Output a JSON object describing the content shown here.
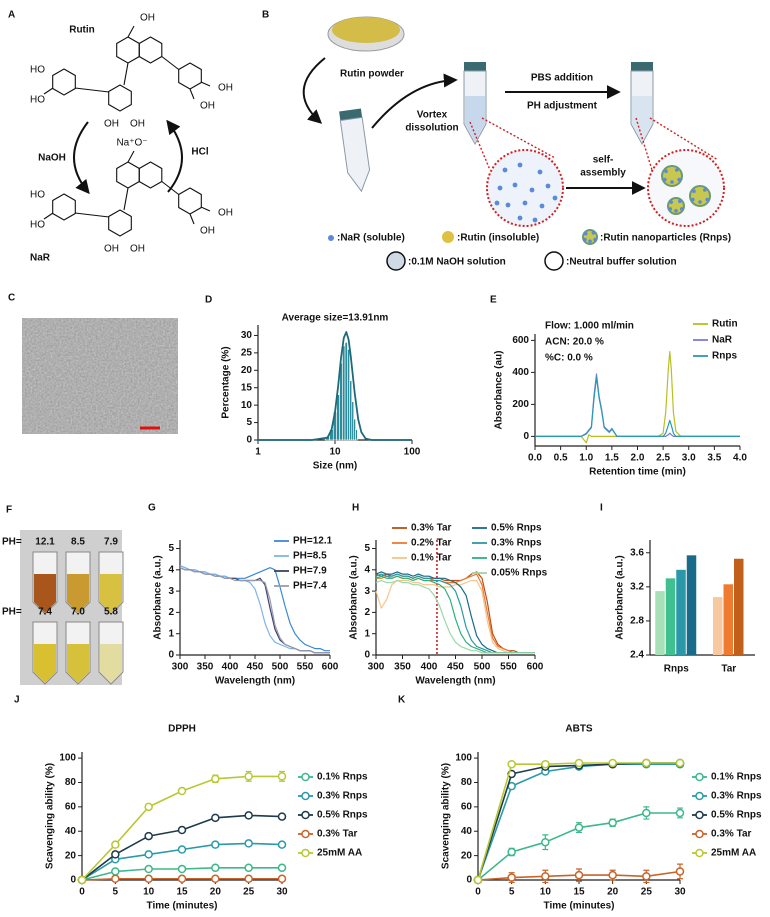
{
  "panel_letters": [
    "A",
    "B",
    "C",
    "D",
    "E",
    "F",
    "G",
    "H",
    "I",
    "J",
    "K"
  ],
  "scheme_a": {
    "rutin": "Rutin",
    "nar": "NaR",
    "forward": "NaOH",
    "reverse": "HCl",
    "ion": "Na⁺O⁻",
    "rutin_groups": [
      "OH",
      "OH",
      "OH",
      "OH",
      "OH",
      "HO",
      "HO"
    ],
    "nar_groups": [
      "OH",
      "OH",
      "OH",
      "OH",
      "HO",
      "HO"
    ]
  },
  "scheme_b": {
    "powder": "Rutin powder",
    "vortex": [
      "Vortex",
      "dissolution"
    ],
    "step1": "PBS addition",
    "step2": "PH adjustment",
    "assembly": [
      "self-",
      "assembly"
    ],
    "legend": [
      ":NaR (soluble)",
      ":Rutin (insoluble)",
      ":Rutin nanoparticles (Rnps)",
      ":0.1M NaOH solution",
      ":Neutral buffer solution"
    ]
  },
  "vials": {
    "rows": [
      {
        "label": "PH=",
        "values": [
          "12.1",
          "8.5",
          "7.9"
        ]
      },
      {
        "label": "PH=",
        "values": [
          "7.4",
          "7.0",
          "5.8"
        ]
      }
    ]
  },
  "chart_data": [
    {
      "type": "histogram",
      "title": "Average size=13.91nm",
      "xlabel": "Size (nm)",
      "ylabel": "Percentage (%)",
      "xlog": true,
      "xlim": [
        1,
        100
      ],
      "xticks": [
        1,
        10,
        100
      ],
      "ylim": [
        0,
        33
      ],
      "yticks": [
        0,
        5,
        10,
        15,
        20,
        25,
        30
      ],
      "color": "#2c8c9c",
      "bins": [
        7.5,
        8.5,
        9.5,
        10.5,
        11.5,
        12.5,
        13.5,
        14.5,
        15.5,
        16.5,
        17.5,
        18.5,
        19.5
      ],
      "values": [
        1,
        3,
        8,
        13,
        22,
        27,
        28,
        26,
        17,
        11,
        6,
        3
      ],
      "fit": {
        "color": "#1e6a78",
        "x": [
          1,
          5,
          8,
          9,
          10,
          11,
          12,
          13,
          14,
          15,
          16,
          18,
          20,
          22,
          25,
          30,
          100
        ],
        "values": [
          0,
          0,
          0.7,
          2.9,
          8,
          15.6,
          23.7,
          29.3,
          31,
          28.8,
          24.2,
          13.5,
          5.9,
          2.2,
          0.4,
          0,
          0
        ]
      }
    },
    {
      "type": "line",
      "xlabel": "Retention time (min)",
      "ylabel": "Absorbance (au)",
      "annotations": [
        "Flow: 1.000 ml/min",
        "ACN: 20.0 %",
        "%C: 0.0 %"
      ],
      "xlim": [
        0,
        4
      ],
      "xticks": [
        {
          "value": 0,
          "label": "0.0"
        },
        0.5,
        {
          "value": 1,
          "label": "1.0"
        },
        1.5,
        {
          "value": 2,
          "label": "2.0"
        },
        2.5,
        {
          "value": 3,
          "label": "3.0"
        },
        3.5,
        {
          "value": 4,
          "label": "4.0"
        }
      ],
      "ylim": [
        -60,
        640
      ],
      "yticks": [
        0,
        200,
        400,
        600
      ],
      "x": [
        0,
        0.9,
        1,
        1.05,
        1.1,
        1.15,
        1.2,
        1.25,
        1.3,
        1.35,
        1.45,
        1.5,
        1.6,
        2.4,
        2.5,
        2.55,
        2.6,
        2.63,
        2.66,
        2.7,
        2.75,
        2.85,
        4
      ],
      "series": [
        {
          "name": "Rutin",
          "color": "#b8c020",
          "values": [
            0,
            0,
            -40,
            10,
            0,
            0,
            0,
            0,
            0,
            0,
            0,
            0,
            0,
            0,
            20,
            150,
            420,
            530,
            420,
            150,
            30,
            0,
            0
          ]
        },
        {
          "name": "NaR",
          "color": "#7a7ae0",
          "values": [
            0,
            0,
            20,
            40,
            60,
            250,
            390,
            250,
            170,
            60,
            30,
            50,
            0,
            0,
            0,
            0,
            10,
            20,
            10,
            0,
            0,
            0,
            0
          ]
        },
        {
          "name": "Rnps",
          "color": "#2a9ab0",
          "values": [
            0,
            0,
            15,
            35,
            55,
            230,
            370,
            240,
            160,
            55,
            25,
            45,
            0,
            0,
            0,
            20,
            70,
            100,
            70,
            20,
            0,
            0,
            0
          ]
        }
      ]
    },
    {
      "type": "line",
      "xlabel": "Wavelength (nm)",
      "ylabel": "Absorbance (a.u.)",
      "xlim": [
        300,
        600
      ],
      "xticks": [
        300,
        350,
        400,
        450,
        500,
        550,
        600
      ],
      "ylim": [
        0,
        5.4
      ],
      "yticks": [
        0,
        1,
        2,
        3,
        4,
        5
      ],
      "x": [
        300,
        310,
        320,
        330,
        340,
        350,
        360,
        370,
        380,
        390,
        400,
        410,
        420,
        430,
        440,
        450,
        460,
        470,
        480,
        490,
        500,
        510,
        520,
        530,
        540,
        550,
        560,
        570,
        580,
        590,
        600
      ],
      "series": [
        {
          "name": "PH=12.1",
          "color": "#3a88d8",
          "values": [
            4.2,
            4.1,
            4.0,
            4.0,
            3.9,
            3.9,
            3.8,
            3.8,
            3.7,
            3.7,
            3.6,
            3.6,
            3.6,
            3.6,
            3.7,
            3.8,
            3.9,
            4.0,
            4.1,
            4.0,
            3.2,
            2.3,
            1.5,
            1.0,
            0.7,
            0.5,
            0.4,
            0.3,
            0.3,
            0.2,
            0.2
          ]
        },
        {
          "name": "PH=8.5",
          "color": "#80b4ea",
          "values": [
            4.2,
            4.1,
            4.0,
            4.0,
            3.9,
            3.9,
            3.8,
            3.8,
            3.7,
            3.7,
            3.6,
            3.6,
            3.5,
            3.5,
            3.4,
            3.1,
            2.4,
            1.5,
            0.9,
            0.6,
            0.5,
            0.4,
            0.3,
            0.3,
            0.2,
            0.2,
            0.2,
            0.1,
            0.1,
            0.1,
            0.1
          ]
        },
        {
          "name": "PH=7.9",
          "color": "#3a4466",
          "values": [
            4.1,
            4.0,
            4.0,
            3.9,
            3.9,
            3.8,
            3.8,
            3.7,
            3.7,
            3.6,
            3.6,
            3.6,
            3.5,
            3.5,
            3.5,
            3.5,
            3.6,
            3.3,
            2.2,
            1.2,
            0.7,
            0.5,
            0.4,
            0.3,
            0.2,
            0.2,
            0.2,
            0.1,
            0.1,
            0.1,
            0.1
          ]
        },
        {
          "name": "PH=7.4",
          "color": "#9a9aae",
          "values": [
            4.1,
            4.0,
            4.0,
            3.9,
            3.9,
            3.8,
            3.8,
            3.7,
            3.7,
            3.6,
            3.6,
            3.5,
            3.5,
            3.5,
            3.5,
            3.5,
            3.5,
            3.4,
            2.6,
            1.4,
            0.8,
            0.5,
            0.4,
            0.3,
            0.2,
            0.2,
            0.2,
            0.1,
            0.1,
            0.1,
            0.1
          ]
        }
      ]
    },
    {
      "type": "line",
      "xlabel": "Wavelength (nm)",
      "ylabel": "Absorbance (a.u.)",
      "xlim": [
        300,
        600
      ],
      "xticks": [
        300,
        350,
        400,
        450,
        500,
        550,
        600
      ],
      "ylim": [
        0,
        5.4
      ],
      "yticks": [
        0,
        1,
        2,
        3,
        4,
        5
      ],
      "vline": 415,
      "vline_color": "#d02020",
      "x": [
        300,
        310,
        320,
        330,
        340,
        350,
        360,
        370,
        380,
        390,
        400,
        410,
        420,
        430,
        440,
        450,
        460,
        470,
        480,
        490,
        500,
        510,
        520,
        530,
        540,
        550,
        560,
        570,
        580,
        590,
        600
      ],
      "series": [
        {
          "name": "0.3% Tar",
          "color": "#b8501a",
          "values": [
            3.8,
            3.7,
            3.8,
            3.7,
            3.8,
            3.7,
            3.7,
            3.6,
            3.7,
            3.6,
            3.6,
            3.6,
            3.6,
            3.5,
            3.5,
            3.5,
            3.5,
            3.6,
            3.8,
            3.9,
            3.6,
            2.5,
            1.0,
            0.5,
            0.3,
            0.2,
            0.2,
            0.1,
            0.1,
            0.1,
            0.1
          ]
        },
        {
          "name": "0.2% Tar",
          "color": "#f07830",
          "values": [
            3.6,
            3.6,
            3.7,
            3.6,
            3.7,
            3.6,
            3.6,
            3.5,
            3.6,
            3.5,
            3.5,
            3.5,
            3.5,
            3.4,
            3.4,
            3.4,
            3.5,
            3.6,
            3.7,
            3.8,
            3.3,
            2.0,
            0.8,
            0.4,
            0.3,
            0.2,
            0.1,
            0.1,
            0.1,
            0.1,
            0.1
          ]
        },
        {
          "name": "0.1% Tar",
          "color": "#f5c48a",
          "values": [
            3.0,
            2.2,
            2.6,
            3.3,
            3.5,
            3.5,
            3.5,
            3.4,
            3.4,
            3.3,
            3.3,
            3.3,
            3.2,
            3.2,
            3.2,
            3.3,
            3.3,
            3.4,
            3.5,
            3.5,
            3.0,
            1.6,
            0.6,
            0.3,
            0.2,
            0.1,
            0.1,
            0.1,
            0.1,
            0.1,
            0.1
          ]
        },
        {
          "name": "0.5% Rnps",
          "color": "#1a6a8a",
          "values": [
            3.8,
            3.9,
            3.8,
            3.8,
            3.9,
            3.8,
            3.8,
            3.7,
            3.8,
            3.7,
            3.7,
            3.6,
            3.6,
            3.6,
            3.5,
            3.4,
            3.2,
            2.8,
            1.8,
            0.9,
            0.5,
            0.3,
            0.2,
            0.1,
            0.1,
            0.1,
            0.1,
            0.1,
            0.1,
            0.1,
            0.1
          ]
        },
        {
          "name": "0.3% Rnps",
          "color": "#2b9aa0",
          "values": [
            3.7,
            3.8,
            3.7,
            3.7,
            3.8,
            3.7,
            3.7,
            3.6,
            3.7,
            3.6,
            3.6,
            3.5,
            3.5,
            3.4,
            3.3,
            3.0,
            2.3,
            1.3,
            0.7,
            0.4,
            0.3,
            0.2,
            0.1,
            0.1,
            0.1,
            0.1,
            0.1,
            0.1,
            0.1,
            0.1,
            0.1
          ]
        },
        {
          "name": "0.1% Rnps",
          "color": "#2fb07a",
          "values": [
            3.6,
            3.7,
            3.6,
            3.6,
            3.7,
            3.6,
            3.6,
            3.5,
            3.6,
            3.5,
            3.5,
            3.4,
            3.3,
            3.1,
            2.6,
            1.7,
            1.0,
            0.6,
            0.4,
            0.3,
            0.2,
            0.1,
            0.1,
            0.1,
            0.1,
            0.1,
            0.1,
            0.1,
            0.1,
            0.1,
            0.1
          ]
        },
        {
          "name": "0.05% Rnps",
          "color": "#9ad8a8",
          "values": [
            3.4,
            3.5,
            3.4,
            3.4,
            3.5,
            3.4,
            3.4,
            3.3,
            3.3,
            3.2,
            3.1,
            2.8,
            2.3,
            1.6,
            1.0,
            0.6,
            0.4,
            0.3,
            0.2,
            0.2,
            0.1,
            0.1,
            0.1,
            0.1,
            0.1,
            0.1,
            0.1,
            0.1,
            0.1,
            0.1,
            0.1
          ]
        }
      ]
    },
    {
      "type": "bar",
      "ylabel": "Absorbance (a.u.)",
      "ylim": [
        2.4,
        3.75
      ],
      "yticks": [
        2.4,
        2.8,
        3.2,
        3.6
      ],
      "groups": [
        {
          "name": "Rnps",
          "values": [
            3.15,
            3.3,
            3.4,
            3.57
          ],
          "colors": [
            "#a8e0b8",
            "#40c090",
            "#2a98a8",
            "#1a6a8a"
          ]
        },
        {
          "name": "Tar",
          "values": [
            3.08,
            3.23,
            3.53
          ],
          "colors": [
            "#f8c8a0",
            "#f07a30",
            "#c0601a"
          ]
        }
      ]
    },
    {
      "type": "line",
      "markers": true,
      "title": "DPPH",
      "xlabel": "Time (minutes)",
      "ylabel": "Scavenging ability (%)",
      "xlim": [
        0,
        30
      ],
      "xticks": [
        0,
        5,
        10,
        15,
        20,
        25,
        30
      ],
      "ylim": [
        0,
        105
      ],
      "yticks": [
        0,
        20,
        40,
        60,
        80,
        100
      ],
      "x": [
        0,
        5,
        10,
        15,
        20,
        25,
        30
      ],
      "series": [
        {
          "name": "0.1% Rnps",
          "color": "#3cb88a",
          "values": [
            0,
            7,
            9,
            9,
            10,
            10,
            10
          ],
          "errors": [
            0,
            1,
            1,
            1,
            1,
            1,
            1
          ]
        },
        {
          "name": "0.3% Rnps",
          "color": "#2a9aa8",
          "values": [
            0,
            17,
            21,
            25,
            29,
            30,
            29
          ],
          "errors": [
            0,
            1,
            1,
            1,
            1,
            1,
            1
          ]
        },
        {
          "name": "0.5% Rnps",
          "color": "#1e3a4a",
          "values": [
            0,
            21,
            36,
            41,
            51,
            53,
            52
          ],
          "errors": [
            0,
            2,
            1,
            2,
            1,
            1,
            1
          ]
        },
        {
          "name": "0.3% Tar",
          "color": "#c8642a",
          "values": [
            0,
            1,
            1,
            1,
            1,
            1,
            1
          ],
          "errors": [
            0,
            0.5,
            0.5,
            0.5,
            0.5,
            0.5,
            0.5
          ]
        },
        {
          "name": "25mM AA",
          "color": "#b8c832",
          "values": [
            0,
            29,
            60,
            73,
            83,
            85,
            85
          ],
          "errors": [
            0,
            2,
            1,
            2,
            3,
            4,
            4
          ]
        }
      ]
    },
    {
      "type": "line",
      "markers": true,
      "title": "ABTS",
      "xlabel": "Time (minutes)",
      "ylabel": "Scavenging ability (%)",
      "xlim": [
        0,
        30
      ],
      "xticks": [
        0,
        5,
        10,
        15,
        20,
        25,
        30
      ],
      "ylim": [
        0,
        105
      ],
      "yticks": [
        0,
        20,
        40,
        60,
        80,
        100
      ],
      "x": [
        0,
        5,
        10,
        15,
        20,
        25,
        30
      ],
      "series": [
        {
          "name": "0.1% Rnps",
          "color": "#3cb88a",
          "values": [
            0,
            23,
            31,
            43,
            47,
            55,
            55
          ],
          "errors": [
            0,
            3,
            6,
            4,
            3,
            5,
            4
          ]
        },
        {
          "name": "0.3% Rnps",
          "color": "#2a9aa8",
          "values": [
            0,
            77,
            89,
            93,
            95,
            95,
            95
          ],
          "errors": [
            0,
            2,
            2,
            1,
            1,
            1,
            1
          ]
        },
        {
          "name": "0.5% Rnps",
          "color": "#1e3a4a",
          "values": [
            0,
            87,
            93,
            94,
            95,
            96,
            96
          ],
          "errors": [
            0,
            1,
            1,
            1,
            1,
            1,
            1
          ]
        },
        {
          "name": "0.3% Tar",
          "color": "#c8642a",
          "values": [
            0,
            2,
            3,
            4,
            4,
            3,
            7
          ],
          "errors": [
            0,
            4,
            5,
            5,
            4,
            5,
            6
          ]
        },
        {
          "name": "25mM AA",
          "color": "#b8c832",
          "values": [
            0,
            95,
            95,
            96,
            96,
            96,
            96
          ],
          "errors": [
            0,
            1,
            1,
            1,
            1,
            1,
            1
          ]
        }
      ]
    }
  ]
}
